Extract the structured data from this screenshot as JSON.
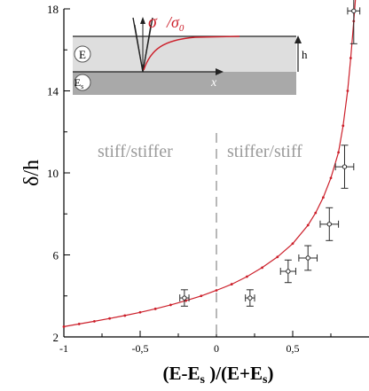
{
  "chart_data": {
    "type": "scatter",
    "title": "",
    "xlabel": "(E-E",
    "xlabel_sub1": "s",
    "xlabel_mid": " )/(E+E",
    "xlabel_sub2": "s",
    "xlabel_end": ")",
    "ylabel": "δ/h",
    "xlim": [
      -1,
      1
    ],
    "ylim": [
      2,
      18
    ],
    "x_ticks": [
      -1,
      -0.5,
      0,
      0.5
    ],
    "x_tick_labels": [
      "-1",
      "-0,5",
      "0",
      "0,5"
    ],
    "y_ticks": [
      2,
      6,
      10,
      14,
      18
    ],
    "y_tick_labels": [
      "2",
      "6",
      "10",
      "14",
      "18"
    ],
    "grid": false,
    "divider_x": 0,
    "region_labels": [
      "stiff/stiffer",
      "stiffer/stiff"
    ],
    "series": [
      {
        "type": "points_with_error",
        "x": [
          -0.21,
          0.22,
          0.47,
          0.6,
          0.74,
          0.84,
          0.9
        ],
        "y": [
          3.9,
          3.9,
          5.2,
          5.85,
          7.5,
          10.3,
          17.9
        ],
        "xerr": [
          0.03,
          0.03,
          0.05,
          0.06,
          0.06,
          0.06,
          0.04
        ],
        "yerr": [
          0.4,
          0.4,
          0.55,
          0.6,
          0.8,
          1.05,
          1.6
        ]
      },
      {
        "type": "line",
        "x": [
          -1,
          -0.9,
          -0.8,
          -0.7,
          -0.6,
          -0.5,
          -0.4,
          -0.3,
          -0.2,
          -0.1,
          0,
          0.1,
          0.2,
          0.3,
          0.4,
          0.5,
          0.6,
          0.65,
          0.7,
          0.75,
          0.8,
          0.83,
          0.86,
          0.88,
          0.9,
          0.92
        ],
        "y": [
          2.5,
          2.63,
          2.76,
          2.9,
          3.04,
          3.2,
          3.37,
          3.56,
          3.77,
          4.0,
          4.27,
          4.57,
          4.94,
          5.38,
          5.9,
          6.55,
          7.45,
          8.05,
          8.8,
          9.75,
          11.0,
          12.3,
          14.0,
          15.6,
          17.4,
          19.5
        ]
      }
    ],
    "inset": {
      "sigma_label": "σ",
      "sigma0_label": "/σ",
      "sigma0_sub": "0",
      "layer_top_label": "E",
      "layer_bottom_label": "E",
      "layer_bottom_sub": "s",
      "height_label": "h",
      "axis_label": "x"
    },
    "colors": {
      "curve": "#cc1f2a",
      "points": "#2a2a2a",
      "region_text": "#9a9a9a",
      "divider": "#b8b8b8",
      "layer_top": "#dedede",
      "layer_bottom": "#a9a9a9"
    }
  }
}
